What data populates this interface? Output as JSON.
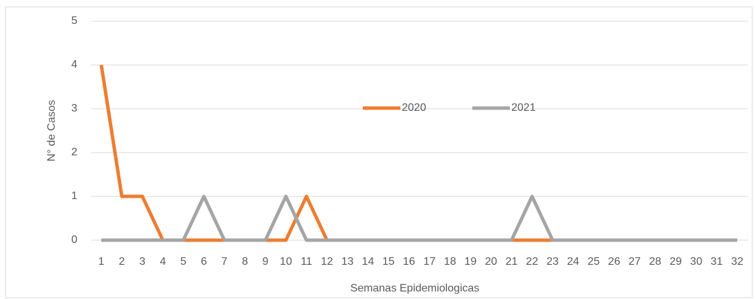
{
  "chart_data": {
    "type": "line",
    "categories": [
      "1",
      "2",
      "3",
      "4",
      "5",
      "6",
      "7",
      "8",
      "9",
      "10",
      "11",
      "12",
      "13",
      "14",
      "15",
      "16",
      "17",
      "18",
      "19",
      "20",
      "21",
      "22",
      "23",
      "24",
      "25",
      "26",
      "27",
      "28",
      "29",
      "30",
      "31",
      "32"
    ],
    "series": [
      {
        "name": "2020",
        "color": "#ed7d31",
        "values": [
          4,
          1,
          1,
          0,
          0,
          0,
          0,
          0,
          0,
          0,
          1,
          0,
          0,
          0,
          0,
          0,
          0,
          0,
          0,
          0,
          0,
          0,
          0,
          0,
          0,
          0,
          0,
          0,
          0,
          0,
          0,
          0
        ]
      },
      {
        "name": "2021",
        "color": "#a5a5a5",
        "values": [
          0,
          0,
          0,
          0,
          0,
          1,
          0,
          0,
          0,
          1,
          0,
          0,
          0,
          0,
          0,
          0,
          0,
          0,
          0,
          0,
          0,
          1,
          0,
          0,
          0,
          0,
          0,
          0,
          0,
          0,
          0,
          0
        ]
      }
    ],
    "ylim": [
      0,
      5
    ],
    "yticks": [
      0,
      1,
      2,
      3,
      4,
      5
    ],
    "grid": true,
    "y_label": "N° de Casos",
    "x_label": "Semanas Epidemiologicas",
    "legend": "center"
  }
}
